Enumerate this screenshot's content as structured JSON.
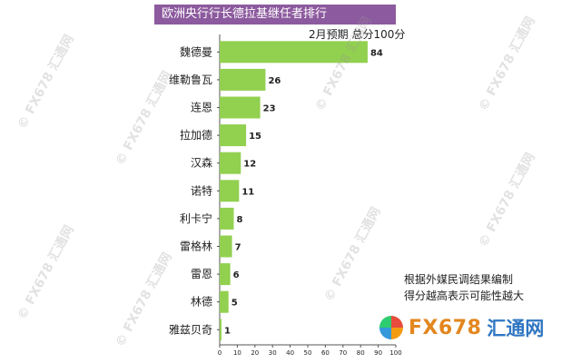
{
  "header": {
    "title": "欧洲央行行长德拉基继任者排行",
    "subtitle": "2月预期 总分100分"
  },
  "note": {
    "line1": "根据外媒民调结果编制",
    "line2": "得分越高表示可能性越大"
  },
  "logo": {
    "text": "FX678",
    "cn": "汇通网"
  },
  "colors": {
    "bar": "#92d050",
    "title_bg": "#8c5a9e"
  },
  "chart_data": {
    "type": "bar",
    "orientation": "horizontal",
    "categories": [
      "魏德曼",
      "维勒鲁瓦",
      "连恩",
      "拉加德",
      "汉森",
      "诺特",
      "利卡宁",
      "雷格林",
      "雷恩",
      "林德",
      "雅兹贝奇"
    ],
    "values": [
      84,
      26,
      23,
      15,
      12,
      11,
      8,
      7,
      6,
      5,
      1
    ],
    "xlim": [
      0,
      100
    ],
    "xticks": [
      0,
      10,
      20,
      30,
      40,
      50,
      60,
      70,
      80,
      90,
      100
    ],
    "grid": false
  }
}
